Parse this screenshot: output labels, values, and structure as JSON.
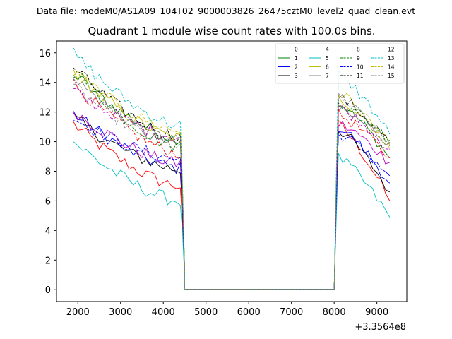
{
  "chart_data": {
    "type": "line",
    "suptitle": "Data file: modeM0/AS1A09_104T02_9000003826_26475cztM0_level2_quad_clean.evt",
    "title": "Quadrant 1 module wise count rates with 100.0s bins.",
    "xlabel": "",
    "ylabel": "",
    "x_offset_label": "+3.3564e8",
    "xlim": [
      1500,
      9700
    ],
    "ylim": [
      -0.8,
      16.8
    ],
    "xticks": [
      2000,
      3000,
      4000,
      5000,
      6000,
      7000,
      8000,
      9000
    ],
    "yticks": [
      0,
      2,
      4,
      6,
      8,
      10,
      12,
      14,
      16
    ],
    "legend_position": "top-right",
    "segments": [
      {
        "x_start": 1900,
        "x_end": 4400,
        "step": 100
      },
      {
        "x_start": 4500,
        "x_end": 8000,
        "step": 100
      },
      {
        "x_start": 8100,
        "x_end": 9300,
        "step": 100
      }
    ],
    "transition_fraction": [
      0.65,
      0.12
    ],
    "series": [
      {
        "name": "0",
        "color": "#ff0000",
        "dash": "solid",
        "start": 11.2,
        "pre_end": 7.0,
        "peak": 11.1,
        "post_end": 6.0
      },
      {
        "name": "1",
        "color": "#008000",
        "dash": "solid",
        "start": 14.6,
        "pre_end": 10.2,
        "peak": 12.6,
        "post_end": 8.9
      },
      {
        "name": "2",
        "color": "#0000ff",
        "dash": "solid",
        "start": 11.9,
        "pre_end": 8.2,
        "peak": 11.0,
        "post_end": 7.2
      },
      {
        "name": "3",
        "color": "#000000",
        "dash": "solid",
        "start": 11.6,
        "pre_end": 8.1,
        "peak": 10.8,
        "post_end": 6.6
      },
      {
        "name": "4",
        "color": "#c000c0",
        "dash": "solid",
        "start": 12.1,
        "pre_end": 8.5,
        "peak": 11.2,
        "post_end": 8.6
      },
      {
        "name": "5",
        "color": "#00bfbf",
        "dash": "solid",
        "start": 10.0,
        "pre_end": 6.0,
        "peak": 8.9,
        "post_end": 4.9
      },
      {
        "name": "6",
        "color": "#bfbf00",
        "dash": "solid",
        "start": 14.8,
        "pre_end": 10.2,
        "peak": 12.9,
        "post_end": 9.8
      },
      {
        "name": "7",
        "color": "#808080",
        "dash": "solid",
        "start": 14.3,
        "pre_end": 10.0,
        "peak": 12.1,
        "post_end": 9.9
      },
      {
        "name": "8",
        "color": "#ff0000",
        "dash": "dashed",
        "start": 13.9,
        "pre_end": 9.2,
        "peak": 11.8,
        "post_end": 8.9
      },
      {
        "name": "9",
        "color": "#008000",
        "dash": "dashed",
        "start": 14.9,
        "pre_end": 9.6,
        "peak": 12.7,
        "post_end": 10.1
      },
      {
        "name": "10",
        "color": "#0000ff",
        "dash": "dashed",
        "start": 11.6,
        "pre_end": 8.8,
        "peak": 10.5,
        "post_end": 7.7
      },
      {
        "name": "11",
        "color": "#000000",
        "dash": "dashed",
        "start": 15.0,
        "pre_end": 10.3,
        "peak": 13.0,
        "post_end": 9.9
      },
      {
        "name": "12",
        "color": "#c000c0",
        "dash": "dashed",
        "start": 13.4,
        "pre_end": 10.3,
        "peak": 12.3,
        "post_end": 9.5
      },
      {
        "name": "13",
        "color": "#00bfbf",
        "dash": "dashed",
        "start": 15.9,
        "pre_end": 11.1,
        "peak": 14.5,
        "post_end": 10.5
      },
      {
        "name": "14",
        "color": "#bfbf00",
        "dash": "dashed",
        "start": 14.7,
        "pre_end": 10.7,
        "peak": 13.3,
        "post_end": 9.6
      },
      {
        "name": "15",
        "color": "#808080",
        "dash": "dashed",
        "start": 13.8,
        "pre_end": 9.7,
        "peak": 12.9,
        "post_end": 9.7
      }
    ]
  }
}
